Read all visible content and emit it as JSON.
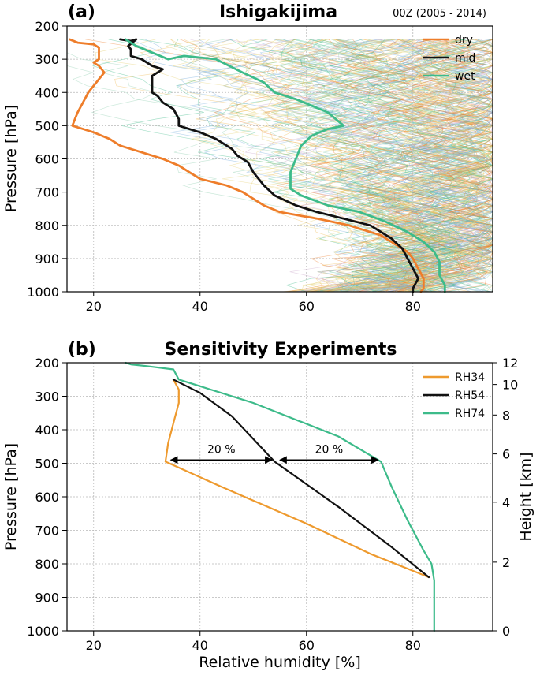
{
  "chart_data": [
    {
      "type": "line",
      "panel_label": "(a)",
      "title": "Ishigakijima",
      "subtitle": "00Z (2005 - 2014)",
      "xlabel": "",
      "ylabel": "Pressure [hPa]",
      "xlim": [
        15,
        95
      ],
      "ylim": [
        1000,
        200
      ],
      "xticks": [
        "20",
        "40",
        "60",
        "80"
      ],
      "yticks": [
        "200",
        "300",
        "400",
        "500",
        "600",
        "700",
        "800",
        "900",
        "1000"
      ],
      "grid": true,
      "legend_position": "top-right",
      "series": [
        {
          "name": "dry",
          "color": "#ee7d2a",
          "points": [
            [
              15.5,
              240
            ],
            [
              17,
              250
            ],
            [
              20,
              255
            ],
            [
              21,
              265
            ],
            [
              21,
              300
            ],
            [
              20,
              310
            ],
            [
              21,
              320
            ],
            [
              22,
              340
            ],
            [
              21,
              360
            ],
            [
              20,
              380
            ],
            [
              19,
              400
            ],
            [
              18,
              430
            ],
            [
              17,
              460
            ],
            [
              16.5,
              480
            ],
            [
              16,
              500
            ],
            [
              18,
              510
            ],
            [
              20,
              520
            ],
            [
              23,
              540
            ],
            [
              25,
              560
            ],
            [
              29,
              580
            ],
            [
              33,
              600
            ],
            [
              36,
              620
            ],
            [
              38,
              640
            ],
            [
              40,
              660
            ],
            [
              45,
              680
            ],
            [
              48,
              700
            ],
            [
              50,
              720
            ],
            [
              52,
              740
            ],
            [
              55,
              760
            ],
            [
              62,
              780
            ],
            [
              68,
              800
            ],
            [
              74,
              830
            ],
            [
              77,
              860
            ],
            [
              79,
              880
            ],
            [
              80,
              900
            ],
            [
              81,
              930
            ],
            [
              82,
              960
            ],
            [
              82,
              990
            ],
            [
              81.5,
              1000
            ]
          ]
        },
        {
          "name": "mid",
          "color": "#111111",
          "points": [
            [
              25,
              240
            ],
            [
              27,
              245
            ],
            [
              28,
              240
            ],
            [
              26.5,
              260
            ],
            [
              27,
              270
            ],
            [
              27,
              290
            ],
            [
              29,
              300
            ],
            [
              31,
              320
            ],
            [
              33,
              330
            ],
            [
              31,
              350
            ],
            [
              31,
              380
            ],
            [
              31,
              400
            ],
            [
              32,
              410
            ],
            [
              33,
              430
            ],
            [
              35,
              450
            ],
            [
              36,
              480
            ],
            [
              36,
              500
            ],
            [
              40,
              520
            ],
            [
              43,
              540
            ],
            [
              46,
              570
            ],
            [
              47,
              590
            ],
            [
              49,
              610
            ],
            [
              50,
              640
            ],
            [
              52,
              680
            ],
            [
              54,
              710
            ],
            [
              58,
              740
            ],
            [
              62,
              760
            ],
            [
              67,
              780
            ],
            [
              72,
              800
            ],
            [
              76,
              840
            ],
            [
              78,
              870
            ],
            [
              79,
              900
            ],
            [
              80,
              930
            ],
            [
              81,
              960
            ],
            [
              80,
              990
            ],
            [
              80,
              1000
            ]
          ]
        },
        {
          "name": "wet",
          "color": "#3dbb8a",
          "points": [
            [
              26,
              240
            ],
            [
              28,
              260
            ],
            [
              31,
              280
            ],
            [
              34,
              300
            ],
            [
              37,
              290
            ],
            [
              43,
              300
            ],
            [
              48,
              340
            ],
            [
              52,
              370
            ],
            [
              54,
              400
            ],
            [
              58,
              420
            ],
            [
              61,
              440
            ],
            [
              64,
              460
            ],
            [
              67,
              500
            ],
            [
              64,
              510
            ],
            [
              61,
              530
            ],
            [
              59,
              560
            ],
            [
              58,
              600
            ],
            [
              57,
              640
            ],
            [
              57,
              690
            ],
            [
              59,
              710
            ],
            [
              64,
              740
            ],
            [
              70,
              760
            ],
            [
              75,
              790
            ],
            [
              79,
              820
            ],
            [
              82,
              850
            ],
            [
              84,
              880
            ],
            [
              85,
              910
            ],
            [
              85,
              950
            ],
            [
              86,
              980
            ],
            [
              86,
              1000
            ]
          ]
        }
      ],
      "background_spaghetti_colors": [
        "#3dbb8a",
        "#f0b850",
        "#ee7d2a",
        "#8ecfb0",
        "#6fa8dc",
        "#c8a2c8",
        "#e5cf6a"
      ]
    },
    {
      "type": "line",
      "panel_label": "(b)",
      "title": "Sensitivity Experiments",
      "xlabel": "Relative humidity [%]",
      "ylabel": "Pressure [hPa]",
      "ylabel_right": "Height [km]",
      "xlim": [
        15,
        95
      ],
      "ylim": [
        1000,
        200
      ],
      "xticks": [
        "20",
        "40",
        "60",
        "80"
      ],
      "yticks": [
        "200",
        "300",
        "400",
        "500",
        "600",
        "700",
        "800",
        "900",
        "1000"
      ],
      "right_ticks": [
        {
          "label": "12",
          "pressure": 200
        },
        {
          "label": "10",
          "pressure": 265
        },
        {
          "label": "8",
          "pressure": 356
        },
        {
          "label": "6",
          "pressure": 472
        },
        {
          "label": "4",
          "pressure": 616
        },
        {
          "label": "2",
          "pressure": 795
        },
        {
          "label": "0",
          "pressure": 1000
        }
      ],
      "grid": true,
      "legend_position": "top-right",
      "series": [
        {
          "name": "RH34",
          "color": "#ee9a2e",
          "points": [
            [
              35,
              250
            ],
            [
              36,
              280
            ],
            [
              36,
              320
            ],
            [
              35,
              380
            ],
            [
              34,
              440
            ],
            [
              33.5,
              495
            ],
            [
              44,
              570
            ],
            [
              60,
              680
            ],
            [
              72,
              770
            ],
            [
              83,
              840
            ]
          ]
        },
        {
          "name": "RH54",
          "color": "#111111",
          "points": [
            [
              35,
              250
            ],
            [
              40,
              290
            ],
            [
              46,
              360
            ],
            [
              54,
              495
            ],
            [
              66,
              630
            ],
            [
              76,
              750
            ],
            [
              83,
              840
            ]
          ]
        },
        {
          "name": "RH74",
          "color": "#3dbb8a",
          "points": [
            [
              26,
              200
            ],
            [
              27,
              205
            ],
            [
              30,
              210
            ],
            [
              35,
              220
            ],
            [
              36,
              250
            ],
            [
              50,
              320
            ],
            [
              66,
              420
            ],
            [
              74,
              495
            ],
            [
              76,
              570
            ],
            [
              79,
              670
            ],
            [
              82,
              760
            ],
            [
              83.5,
              800
            ],
            [
              84,
              850
            ],
            [
              84,
              950
            ],
            [
              84,
              1000
            ]
          ]
        }
      ],
      "annotations": [
        {
          "text": "20 %",
          "x_from": 34.5,
          "x_to": 53.5,
          "pressure": 490
        },
        {
          "text": "20 %",
          "x_from": 55,
          "x_to": 73.5,
          "pressure": 490
        }
      ]
    }
  ]
}
